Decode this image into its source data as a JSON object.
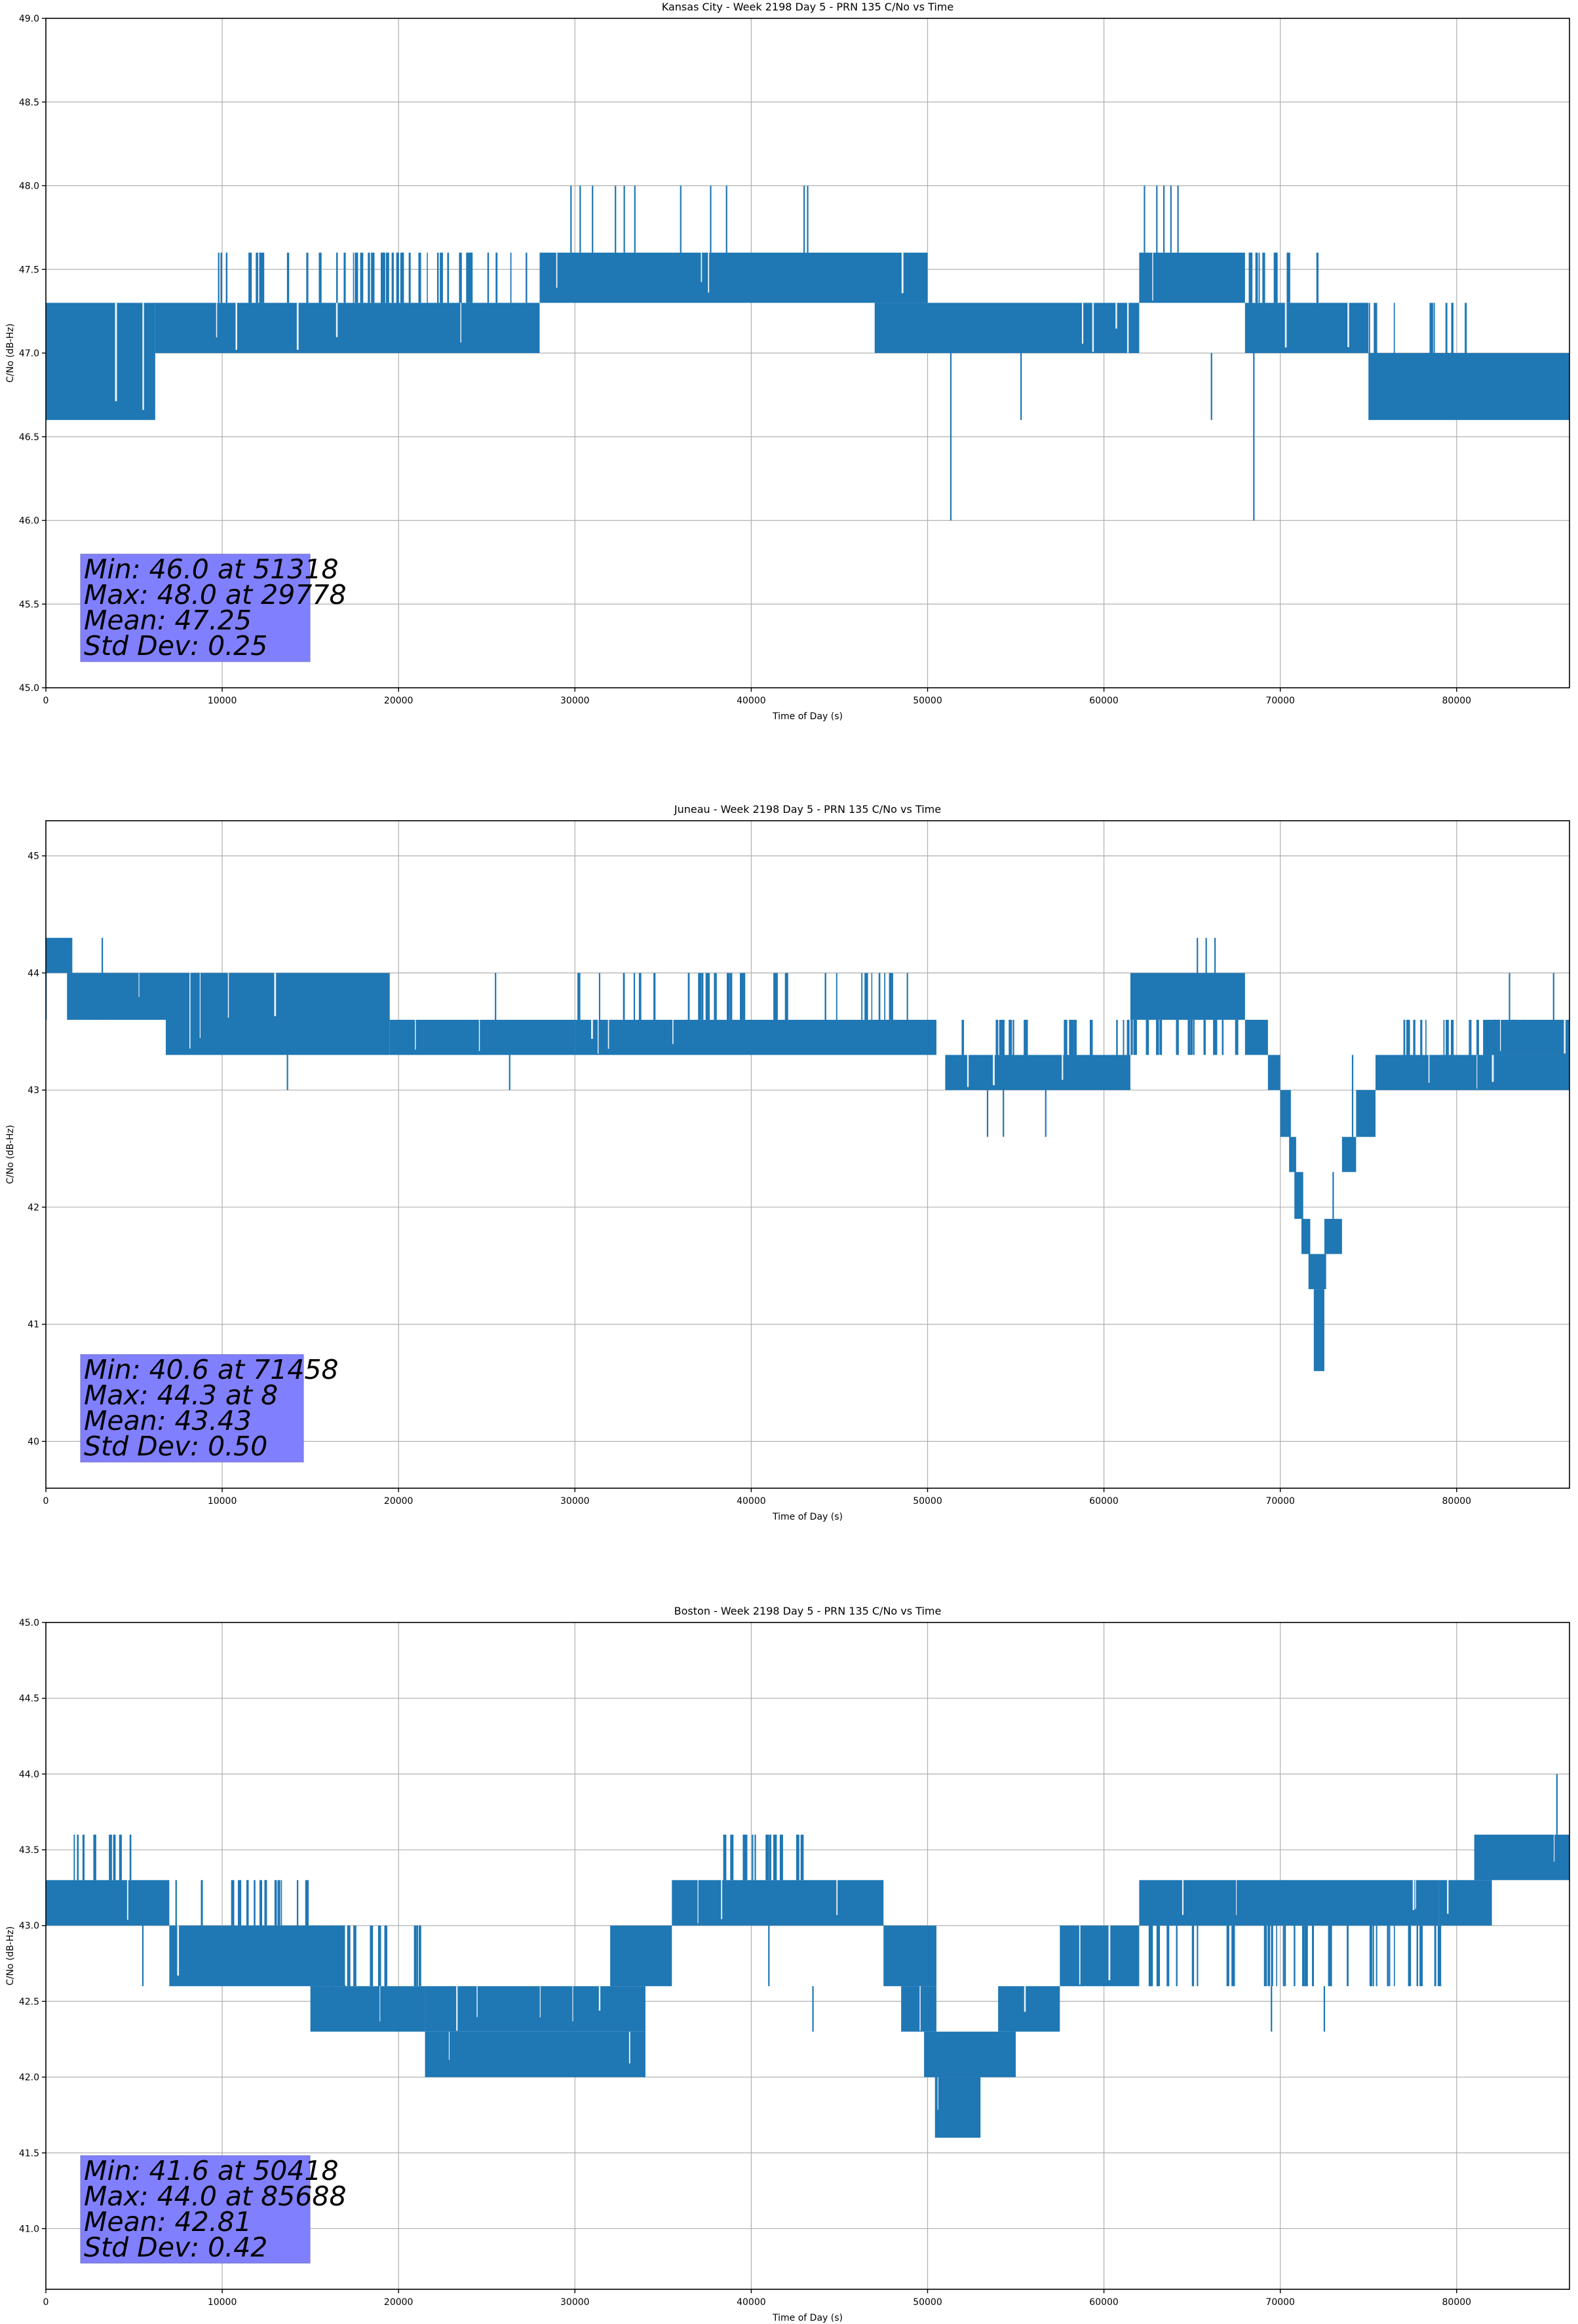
{
  "figure": {
    "signal_color": "#1f77b4",
    "statbox_color": "#8080ff"
  },
  "chart_data": [
    {
      "type": "line",
      "title": "Kansas City - Week 2198 Day 5 - PRN 135 C/No vs Time",
      "xlabel": "Time of Day (s)",
      "ylabel": "C/No (dB-Hz)",
      "xlim": [
        0,
        86400
      ],
      "ylim": [
        45.0,
        49.0
      ],
      "grid": true,
      "xticks": [
        0,
        10000,
        20000,
        30000,
        40000,
        50000,
        60000,
        70000,
        80000
      ],
      "xtick_labels": [
        "0",
        "10000",
        "20000",
        "30000",
        "40000",
        "50000",
        "60000",
        "70000",
        "80000"
      ],
      "yticks": [
        45.0,
        45.5,
        46.0,
        46.5,
        47.0,
        47.5,
        48.0,
        48.5,
        49.0
      ],
      "ytick_labels": [
        "45.0",
        "45.5",
        "46.0",
        "46.5",
        "47.0",
        "47.5",
        "48.0",
        "48.5",
        "49.0"
      ],
      "bands": [
        {
          "x0": 0,
          "x1": 6200,
          "lo": 46.6,
          "hi": 47.3
        },
        {
          "x0": 6200,
          "x1": 28000,
          "lo": 47.0,
          "hi": 47.3
        },
        {
          "x0": 9800,
          "x1": 27500,
          "lo": 47.3,
          "hi": 47.6,
          "sparse": true
        },
        {
          "x0": 28000,
          "x1": 50000,
          "lo": 47.3,
          "hi": 47.6
        },
        {
          "x0": 47000,
          "x1": 62000,
          "lo": 47.0,
          "hi": 47.3
        },
        {
          "x0": 62000,
          "x1": 68000,
          "lo": 47.3,
          "hi": 47.6
        },
        {
          "x0": 68000,
          "x1": 75000,
          "lo": 47.0,
          "hi": 47.3
        },
        {
          "x0": 68000,
          "x1": 73000,
          "lo": 47.3,
          "hi": 47.6,
          "sparse": true
        },
        {
          "x0": 75000,
          "x1": 86400,
          "lo": 46.6,
          "hi": 47.0
        },
        {
          "x0": 75000,
          "x1": 80500,
          "lo": 47.0,
          "hi": 47.3,
          "sparse": true
        }
      ],
      "spikes": [
        {
          "x": 29778,
          "lo": 47.6,
          "hi": 48.0
        },
        {
          "x": 30300,
          "lo": 47.6,
          "hi": 48.0
        },
        {
          "x": 31000,
          "lo": 47.6,
          "hi": 48.0
        },
        {
          "x": 32300,
          "lo": 47.6,
          "hi": 48.0
        },
        {
          "x": 32800,
          "lo": 47.6,
          "hi": 48.0
        },
        {
          "x": 33400,
          "lo": 47.6,
          "hi": 48.0
        },
        {
          "x": 36000,
          "lo": 47.6,
          "hi": 48.0
        },
        {
          "x": 37700,
          "lo": 47.6,
          "hi": 48.0
        },
        {
          "x": 38600,
          "lo": 47.6,
          "hi": 48.0
        },
        {
          "x": 43000,
          "lo": 47.6,
          "hi": 48.0
        },
        {
          "x": 43200,
          "lo": 47.6,
          "hi": 48.0
        },
        {
          "x": 62300,
          "lo": 47.6,
          "hi": 48.0
        },
        {
          "x": 63000,
          "lo": 47.6,
          "hi": 48.0
        },
        {
          "x": 63400,
          "lo": 47.6,
          "hi": 48.0
        },
        {
          "x": 63800,
          "lo": 47.6,
          "hi": 48.0
        },
        {
          "x": 64200,
          "lo": 47.6,
          "hi": 48.0
        },
        {
          "x": 51318,
          "lo": 46.0,
          "hi": 47.0
        },
        {
          "x": 68500,
          "lo": 46.0,
          "hi": 47.0
        },
        {
          "x": 55300,
          "lo": 46.6,
          "hi": 47.0
        },
        {
          "x": 66100,
          "lo": 46.6,
          "hi": 47.0
        },
        {
          "x": 9800,
          "lo": 47.3,
          "hi": 47.6
        }
      ],
      "stats": {
        "lines": [
          "Min: 46.0 at 51318",
          "Max: 48.0 at 29778",
          "Mean: 47.25",
          "Std Dev: 0.25"
        ],
        "min": 46.0,
        "min_at": 51318,
        "max": 48.0,
        "max_at": 29778,
        "mean": 47.25,
        "std": 0.25,
        "position": "bottom-left"
      }
    },
    {
      "type": "line",
      "title": "Juneau - Week 2198 Day 5 - PRN 135 C/No vs Time",
      "xlabel": "Time of Day (s)",
      "ylabel": "C/No (dB-Hz)",
      "xlim": [
        0,
        86400
      ],
      "ylim": [
        39.6,
        45.3
      ],
      "grid": true,
      "xticks": [
        0,
        10000,
        20000,
        30000,
        40000,
        50000,
        60000,
        70000,
        80000
      ],
      "xtick_labels": [
        "0",
        "10000",
        "20000",
        "30000",
        "40000",
        "50000",
        "60000",
        "70000",
        "80000"
      ],
      "yticks": [
        40,
        41,
        42,
        43,
        44,
        45
      ],
      "ytick_labels": [
        "40",
        "41",
        "42",
        "43",
        "44",
        "45"
      ],
      "bands": [
        {
          "x0": 0,
          "x1": 1500,
          "lo": 44.0,
          "hi": 44.3
        },
        {
          "x0": 1200,
          "x1": 6800,
          "lo": 43.6,
          "hi": 44.0
        },
        {
          "x0": 6800,
          "x1": 19500,
          "lo": 43.3,
          "hi": 44.0
        },
        {
          "x0": 19500,
          "x1": 30000,
          "lo": 43.3,
          "hi": 43.6
        },
        {
          "x0": 30000,
          "x1": 50500,
          "lo": 43.3,
          "hi": 43.6
        },
        {
          "x0": 30000,
          "x1": 50000,
          "lo": 43.6,
          "hi": 44.0,
          "sparse": true
        },
        {
          "x0": 51000,
          "x1": 61500,
          "lo": 43.0,
          "hi": 43.3
        },
        {
          "x0": 51000,
          "x1": 61500,
          "lo": 43.3,
          "hi": 43.6,
          "sparse": true
        },
        {
          "x0": 61500,
          "x1": 68000,
          "lo": 43.6,
          "hi": 44.0
        },
        {
          "x0": 61500,
          "x1": 68000,
          "lo": 43.3,
          "hi": 43.6,
          "sparse": true
        },
        {
          "x0": 68000,
          "x1": 69300,
          "lo": 43.3,
          "hi": 43.6
        },
        {
          "x0": 69300,
          "x1": 70000,
          "lo": 43.0,
          "hi": 43.3
        },
        {
          "x0": 70000,
          "x1": 70600,
          "lo": 42.6,
          "hi": 43.0
        },
        {
          "x0": 70500,
          "x1": 70900,
          "lo": 42.3,
          "hi": 42.6
        },
        {
          "x0": 70800,
          "x1": 71300,
          "lo": 41.9,
          "hi": 42.3
        },
        {
          "x0": 71200,
          "x1": 71700,
          "lo": 41.6,
          "hi": 41.9
        },
        {
          "x0": 71600,
          "x1": 72600,
          "lo": 41.3,
          "hi": 41.6
        },
        {
          "x0": 71900,
          "x1": 72500,
          "lo": 40.6,
          "hi": 41.3
        },
        {
          "x0": 72500,
          "x1": 73500,
          "lo": 41.6,
          "hi": 41.9
        },
        {
          "x0": 73500,
          "x1": 74300,
          "lo": 42.3,
          "hi": 42.6
        },
        {
          "x0": 74300,
          "x1": 75400,
          "lo": 42.6,
          "hi": 43.0
        },
        {
          "x0": 75400,
          "x1": 86400,
          "lo": 43.0,
          "hi": 43.3
        },
        {
          "x0": 76500,
          "x1": 86400,
          "lo": 43.3,
          "hi": 43.6,
          "sparse": true
        },
        {
          "x0": 81500,
          "x1": 86400,
          "lo": 43.3,
          "hi": 43.6
        }
      ],
      "spikes": [
        {
          "x": 8,
          "lo": 43.6,
          "hi": 44.3
        },
        {
          "x": 3200,
          "lo": 43.6,
          "hi": 44.3
        },
        {
          "x": 13700,
          "lo": 43.0,
          "hi": 43.3
        },
        {
          "x": 26300,
          "lo": 43.0,
          "hi": 43.3
        },
        {
          "x": 25500,
          "lo": 43.6,
          "hi": 44.0
        },
        {
          "x": 65300,
          "lo": 44.0,
          "hi": 44.3
        },
        {
          "x": 65800,
          "lo": 44.0,
          "hi": 44.3
        },
        {
          "x": 66300,
          "lo": 44.0,
          "hi": 44.3
        },
        {
          "x": 53400,
          "lo": 42.6,
          "hi": 43.0
        },
        {
          "x": 54300,
          "lo": 42.6,
          "hi": 43.0
        },
        {
          "x": 56700,
          "lo": 42.6,
          "hi": 43.0
        },
        {
          "x": 73000,
          "lo": 41.6,
          "hi": 42.3
        },
        {
          "x": 74100,
          "lo": 42.6,
          "hi": 43.3
        },
        {
          "x": 83000,
          "lo": 43.6,
          "hi": 44.0
        },
        {
          "x": 85500,
          "lo": 43.6,
          "hi": 44.0
        }
      ],
      "stats": {
        "lines": [
          "Min: 40.6 at 71458",
          "Max: 44.3 at 8",
          "Mean: 43.43",
          "Std Dev: 0.50"
        ],
        "min": 40.6,
        "min_at": 71458,
        "max": 44.3,
        "max_at": 8,
        "mean": 43.43,
        "std": 0.5,
        "position": "bottom-left"
      }
    },
    {
      "type": "line",
      "title": "Boston - Week 2198 Day 5 - PRN 135 C/No vs Time",
      "xlabel": "Time of Day (s)",
      "ylabel": "C/No (dB-Hz)",
      "xlim": [
        0,
        86400
      ],
      "ylim": [
        40.6,
        45.0
      ],
      "grid": true,
      "xticks": [
        0,
        10000,
        20000,
        30000,
        40000,
        50000,
        60000,
        70000,
        80000
      ],
      "xtick_labels": [
        "0",
        "10000",
        "20000",
        "30000",
        "40000",
        "50000",
        "60000",
        "70000",
        "80000"
      ],
      "yticks": [
        41.0,
        41.5,
        42.0,
        42.5,
        43.0,
        43.5,
        44.0,
        44.5,
        45.0
      ],
      "ytick_labels": [
        "41.0",
        "41.5",
        "42.0",
        "42.5",
        "43.0",
        "43.5",
        "44.0",
        "44.5",
        "45.0"
      ],
      "bands": [
        {
          "x0": 0,
          "x1": 7000,
          "lo": 43.0,
          "hi": 43.3
        },
        {
          "x0": 1500,
          "x1": 5000,
          "lo": 43.3,
          "hi": 43.6,
          "sparse": true
        },
        {
          "x0": 7000,
          "x1": 17000,
          "lo": 42.6,
          "hi": 43.0
        },
        {
          "x0": 7000,
          "x1": 16500,
          "lo": 43.0,
          "hi": 43.3,
          "sparse": true
        },
        {
          "x0": 15000,
          "x1": 21500,
          "lo": 42.3,
          "hi": 42.6
        },
        {
          "x0": 15000,
          "x1": 21500,
          "lo": 42.6,
          "hi": 43.0,
          "sparse": true
        },
        {
          "x0": 21500,
          "x1": 34000,
          "lo": 42.0,
          "hi": 42.3
        },
        {
          "x0": 21500,
          "x1": 34000,
          "lo": 42.3,
          "hi": 42.6
        },
        {
          "x0": 32000,
          "x1": 35500,
          "lo": 42.6,
          "hi": 43.0
        },
        {
          "x0": 35500,
          "x1": 37000,
          "lo": 43.0,
          "hi": 43.3
        },
        {
          "x0": 37000,
          "x1": 47500,
          "lo": 43.0,
          "hi": 43.3
        },
        {
          "x0": 38000,
          "x1": 43000,
          "lo": 43.3,
          "hi": 43.6,
          "sparse": true
        },
        {
          "x0": 47500,
          "x1": 50500,
          "lo": 42.6,
          "hi": 43.0
        },
        {
          "x0": 48500,
          "x1": 50500,
          "lo": 42.3,
          "hi": 42.6
        },
        {
          "x0": 49800,
          "x1": 55000,
          "lo": 42.0,
          "hi": 42.3
        },
        {
          "x0": 50418,
          "x1": 53000,
          "lo": 41.6,
          "hi": 42.0
        },
        {
          "x0": 54000,
          "x1": 57500,
          "lo": 42.3,
          "hi": 42.6
        },
        {
          "x0": 57500,
          "x1": 62000,
          "lo": 42.6,
          "hi": 43.0
        },
        {
          "x0": 62000,
          "x1": 79000,
          "lo": 43.0,
          "hi": 43.3
        },
        {
          "x0": 62000,
          "x1": 79000,
          "lo": 42.6,
          "hi": 43.0,
          "sparse": true
        },
        {
          "x0": 79000,
          "x1": 82000,
          "lo": 43.0,
          "hi": 43.3
        },
        {
          "x0": 81000,
          "x1": 86400,
          "lo": 43.3,
          "hi": 43.6
        }
      ],
      "spikes": [
        {
          "x": 5500,
          "lo": 42.6,
          "hi": 43.0
        },
        {
          "x": 41000,
          "lo": 42.6,
          "hi": 43.0
        },
        {
          "x": 43500,
          "lo": 42.3,
          "hi": 42.6
        },
        {
          "x": 85688,
          "lo": 43.6,
          "hi": 44.0
        },
        {
          "x": 54800,
          "lo": 42.0,
          "hi": 42.3
        },
        {
          "x": 72500,
          "lo": 42.3,
          "hi": 42.6
        },
        {
          "x": 69500,
          "lo": 42.3,
          "hi": 42.6
        }
      ],
      "stats": {
        "lines": [
          "Min: 41.6 at 50418",
          "Max: 44.0 at 85688",
          "Mean: 42.81",
          "Std Dev: 0.42"
        ],
        "min": 41.6,
        "min_at": 50418,
        "max": 44.0,
        "max_at": 85688,
        "mean": 42.81,
        "std": 0.42,
        "position": "bottom-left"
      }
    }
  ]
}
